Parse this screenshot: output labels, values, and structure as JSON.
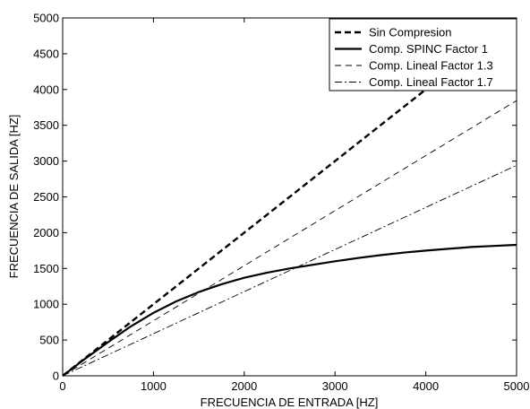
{
  "chart_data": {
    "type": "line",
    "title": "",
    "xlabel": "FRECUENCIA DE ENTRADA [HZ]",
    "ylabel": "FRECUENCIA DE SALIDA [HZ]",
    "xlim": [
      0,
      5000
    ],
    "ylim": [
      0,
      5000
    ],
    "xticks": [
      0,
      1000,
      2000,
      3000,
      4000,
      5000
    ],
    "yticks": [
      0,
      500,
      1000,
      1500,
      2000,
      2500,
      3000,
      3500,
      4000,
      4500,
      5000
    ],
    "grid": false,
    "legend_position": "top-right",
    "colors": {
      "line": "#000000",
      "background": "#ffffff"
    },
    "series": [
      {
        "name": "Sin Compresion",
        "style": "dashed-thick",
        "x": [
          0,
          5000
        ],
        "y": [
          0,
          5000
        ]
      },
      {
        "name": "Comp. SPINC Factor 1",
        "style": "solid",
        "x": [
          0,
          250,
          500,
          750,
          1000,
          1250,
          1500,
          1750,
          2000,
          2250,
          2500,
          2750,
          3000,
          3250,
          3500,
          3750,
          4000,
          4250,
          4500,
          4750,
          5000
        ],
        "y": [
          0,
          240,
          470,
          690,
          880,
          1040,
          1170,
          1280,
          1370,
          1440,
          1500,
          1550,
          1600,
          1645,
          1685,
          1720,
          1750,
          1775,
          1800,
          1815,
          1830
        ]
      },
      {
        "name": "Comp. Lineal Factor 1.3",
        "style": "dashed-thin",
        "x": [
          0,
          5000
        ],
        "y": [
          0,
          3846
        ]
      },
      {
        "name": "Comp. Lineal Factor 1.7",
        "style": "dashdot-thin",
        "x": [
          0,
          5000
        ],
        "y": [
          0,
          2941
        ]
      }
    ]
  }
}
